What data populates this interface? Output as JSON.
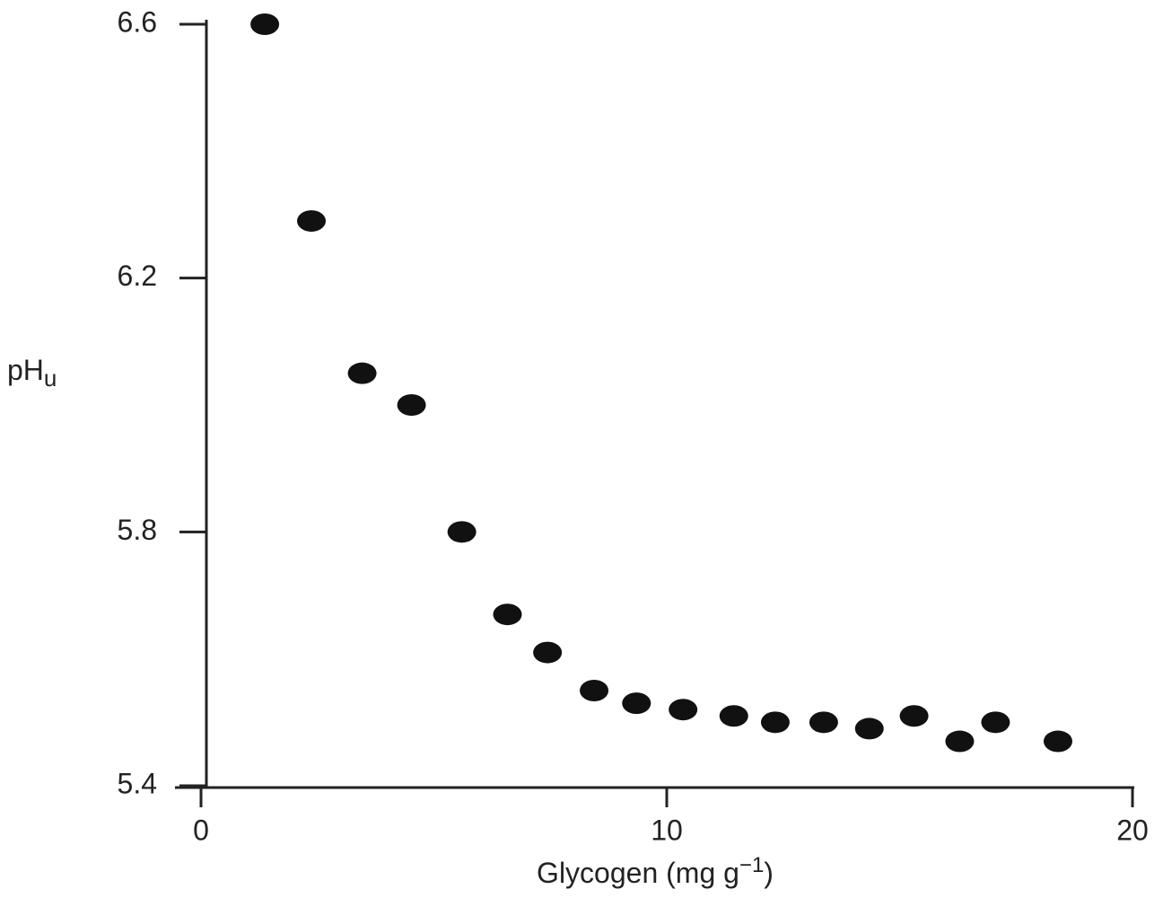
{
  "chart_data": {
    "type": "scatter",
    "x_label": [
      "Glycogen (mg g",
      "−1",
      ")"
    ],
    "y_label": [
      "pH",
      "u"
    ],
    "x": [
      1.37,
      2.37,
      3.46,
      4.52,
      5.6,
      6.58,
      7.44,
      8.44,
      9.35,
      10.35,
      11.44,
      12.33,
      13.37,
      14.35,
      15.31,
      16.29,
      17.06,
      18.4
    ],
    "values": [
      6.6,
      6.29,
      6.05,
      6.0,
      5.8,
      5.67,
      5.61,
      5.55,
      5.53,
      5.52,
      5.51,
      5.5,
      5.5,
      5.49,
      5.51,
      5.47,
      5.5,
      5.47
    ],
    "color": "#111111",
    "xlim": [
      0,
      20
    ],
    "xticks": [
      0,
      10,
      20
    ],
    "ylim": [
      5.4,
      6.6
    ],
    "yticks": [
      5.4,
      5.8,
      6.2,
      6.6
    ]
  }
}
